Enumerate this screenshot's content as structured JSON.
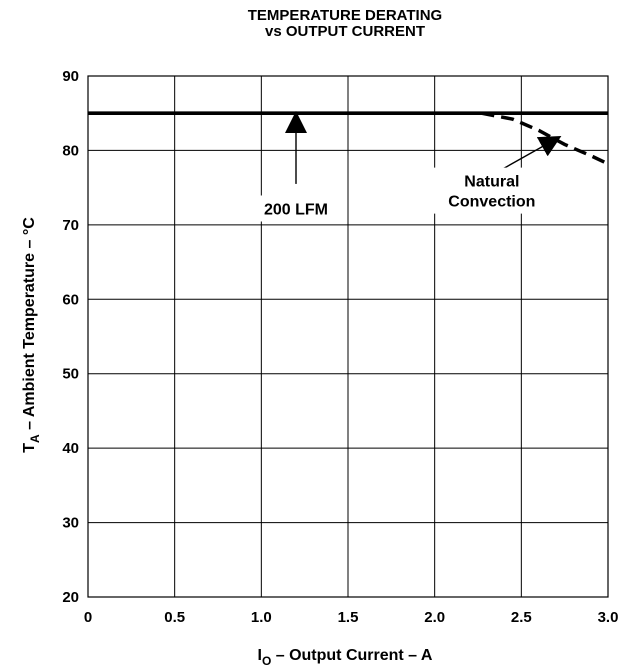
{
  "chart_data": {
    "type": "line",
    "title_line1": "TEMPERATURE DERATING",
    "title_line2": "vs OUTPUT CURRENT",
    "xlabel_main": "I",
    "xlabel_sub": "O",
    "xlabel_rest": " – Output Current – A",
    "ylabel_main": "T",
    "ylabel_sub": "A",
    "ylabel_rest": " – Ambient Temperature – °C",
    "xlim": [
      0,
      3.0
    ],
    "ylim": [
      20,
      90
    ],
    "xticks": [
      {
        "value": 0,
        "label": "0"
      },
      {
        "value": 0.5,
        "label": "0.5"
      },
      {
        "value": 1.0,
        "label": "1.0"
      },
      {
        "value": 1.5,
        "label": "1.5"
      },
      {
        "value": 2.0,
        "label": "2.0"
      },
      {
        "value": 2.5,
        "label": "2.5"
      },
      {
        "value": 3.0,
        "label": "3.0"
      }
    ],
    "yticks": [
      {
        "value": 20,
        "label": "20"
      },
      {
        "value": 30,
        "label": "30"
      },
      {
        "value": 40,
        "label": "40"
      },
      {
        "value": 50,
        "label": "50"
      },
      {
        "value": 60,
        "label": "60"
      },
      {
        "value": 70,
        "label": "70"
      },
      {
        "value": 80,
        "label": "80"
      },
      {
        "value": 90,
        "label": "90"
      }
    ],
    "grid": true,
    "series": [
      {
        "style": "solid",
        "color": "#000000",
        "points": [
          [
            0,
            85
          ],
          [
            3.0,
            85
          ]
        ]
      },
      {
        "style": "dashed",
        "color": "#000000",
        "points": [
          [
            2.27,
            85
          ],
          [
            2.45,
            84.2
          ],
          [
            2.6,
            82.7
          ],
          [
            2.75,
            80.8
          ],
          [
            2.9,
            79.3
          ],
          [
            3.0,
            78.2
          ]
        ]
      }
    ],
    "annotations": [
      {
        "lines": [
          "200 LFM"
        ],
        "text_at": [
          1.2,
          72.2
        ],
        "arrow_tail": [
          1.2,
          75.5
        ],
        "arrow_head": [
          1.2,
          85
        ]
      },
      {
        "lines": [
          "Natural",
          "Convection"
        ],
        "text_at": [
          2.33,
          74.6
        ],
        "arrow_tail": [
          2.3,
          76.3
        ],
        "arrow_head": [
          2.72,
          81.8
        ]
      }
    ]
  }
}
